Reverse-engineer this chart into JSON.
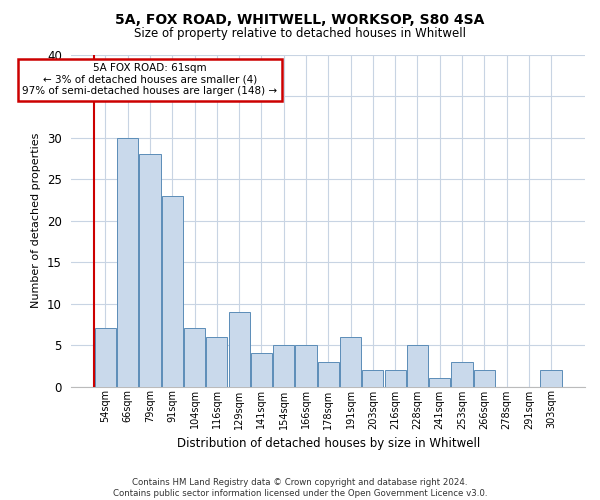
{
  "title": "5A, FOX ROAD, WHITWELL, WORKSOP, S80 4SA",
  "subtitle": "Size of property relative to detached houses in Whitwell",
  "xlabel": "Distribution of detached houses by size in Whitwell",
  "ylabel": "Number of detached properties",
  "categories": [
    "54sqm",
    "66sqm",
    "79sqm",
    "91sqm",
    "104sqm",
    "116sqm",
    "129sqm",
    "141sqm",
    "154sqm",
    "166sqm",
    "178sqm",
    "191sqm",
    "203sqm",
    "216sqm",
    "228sqm",
    "241sqm",
    "253sqm",
    "266sqm",
    "278sqm",
    "291sqm",
    "303sqm"
  ],
  "values": [
    7,
    30,
    28,
    23,
    7,
    6,
    9,
    4,
    5,
    5,
    3,
    6,
    2,
    2,
    5,
    1,
    3,
    2,
    0,
    0,
    2
  ],
  "bar_color": "#c9d9eb",
  "bar_edge_color": "#5b8db8",
  "annotation_line1": "5A FOX ROAD: 61sqm",
  "annotation_line2": "← 3% of detached houses are smaller (4)",
  "annotation_line3": "97% of semi-detached houses are larger (148) →",
  "annotation_box_color": "#ffffff",
  "annotation_box_edge_color": "#cc0000",
  "redline_color": "#cc0000",
  "ylim": [
    0,
    40
  ],
  "yticks": [
    0,
    5,
    10,
    15,
    20,
    25,
    30,
    35,
    40
  ],
  "grid_color": "#c8d4e3",
  "footer_line1": "Contains HM Land Registry data © Crown copyright and database right 2024.",
  "footer_line2": "Contains public sector information licensed under the Open Government Licence v3.0.",
  "bg_color": "#ffffff"
}
